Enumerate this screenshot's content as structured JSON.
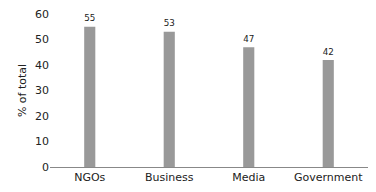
{
  "chart_data": {
    "type": "bar",
    "y_label": "% of total",
    "categories": [
      "NGOs",
      "Business",
      "Media",
      "Government"
    ],
    "values": [
      55,
      53,
      47,
      42
    ],
    "color": "#999999",
    "ylim": [
      0,
      60
    ],
    "yticks": [
      0,
      10,
      20,
      30,
      40,
      50,
      60
    ],
    "grid": false,
    "data_labels": true
  }
}
